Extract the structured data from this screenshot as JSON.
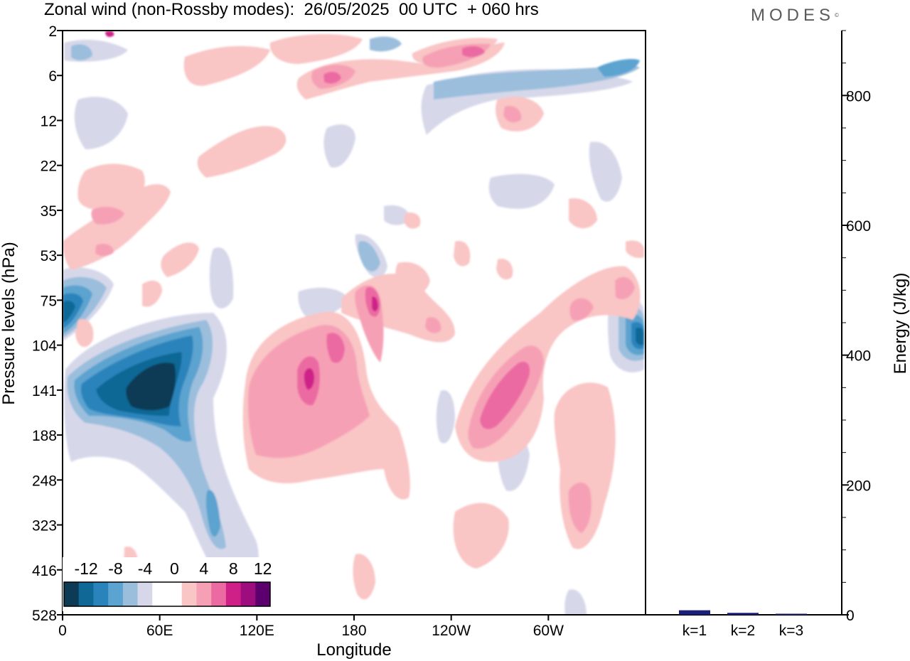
{
  "title": "Zonal wind (non-Rossby modes):  26/05/2025  00 UTC  + 060 hrs",
  "logo": "MODES",
  "chart_data": [
    {
      "type": "heatmap",
      "title": "Zonal wind (non-Rossby modes):  26/05/2025  00 UTC  + 060 hrs",
      "xlabel": "Longitude",
      "ylabel": "Pressure levels (hPa)",
      "x_ticks": [
        "0",
        "60E",
        "120E",
        "180",
        "120W",
        "60W"
      ],
      "x_tick_values": [
        0,
        60,
        120,
        180,
        240,
        300
      ],
      "xlim": [
        0,
        360
      ],
      "y_ticks": [
        "2",
        "6",
        "12",
        "22",
        "35",
        "53",
        "75",
        "104",
        "141",
        "188",
        "248",
        "323",
        "416",
        "528"
      ],
      "colorbar": {
        "labels": [
          "-12",
          "-8",
          "-4",
          "0",
          "4",
          "8",
          "12"
        ],
        "colors": [
          "#0d3a54",
          "#0f6896",
          "#2a84bb",
          "#5ba3d0",
          "#9bbedc",
          "#d6d8ea",
          "#ffffff",
          "#ffffff",
          "#f9c5c5",
          "#f6a0b6",
          "#ec6aa2",
          "#cf2088",
          "#9e0d7e",
          "#5c006e"
        ]
      },
      "features": [
        {
          "sign": "negative",
          "lon": 48,
          "level": "141",
          "peak": -14
        },
        {
          "sign": "negative",
          "lon": 10,
          "level": "75",
          "peak": -10
        },
        {
          "sign": "negative",
          "lon": 358,
          "level": "104",
          "peak": -10
        },
        {
          "sign": "positive",
          "lon": 152,
          "level": "141",
          "peak": 10
        },
        {
          "sign": "positive",
          "lon": 168,
          "level": "104",
          "peak": 8
        },
        {
          "sign": "positive",
          "lon": 191,
          "level": "75",
          "peak": 10
        },
        {
          "sign": "positive",
          "lon": 270,
          "level": "141",
          "peak": 8
        },
        {
          "sign": "positive",
          "lon": 330,
          "level": "248",
          "peak": 4
        },
        {
          "sign": "positive",
          "lon": 165,
          "level": "6",
          "peak": 8
        },
        {
          "sign": "positive",
          "lon": 250,
          "level": "2",
          "peak": 8
        },
        {
          "sign": "negative",
          "lon": 312,
          "level": "6",
          "peak": -6
        }
      ]
    },
    {
      "type": "bar",
      "categories": [
        "k=1",
        "k=2",
        "k=3"
      ],
      "values": [
        7,
        3,
        1
      ],
      "ylabel": "Energy (J/kg)",
      "ylim": [
        0,
        900
      ],
      "y_ticks": [
        0,
        200,
        400,
        600,
        800
      ],
      "bar_color": "#1a1f7a"
    }
  ]
}
